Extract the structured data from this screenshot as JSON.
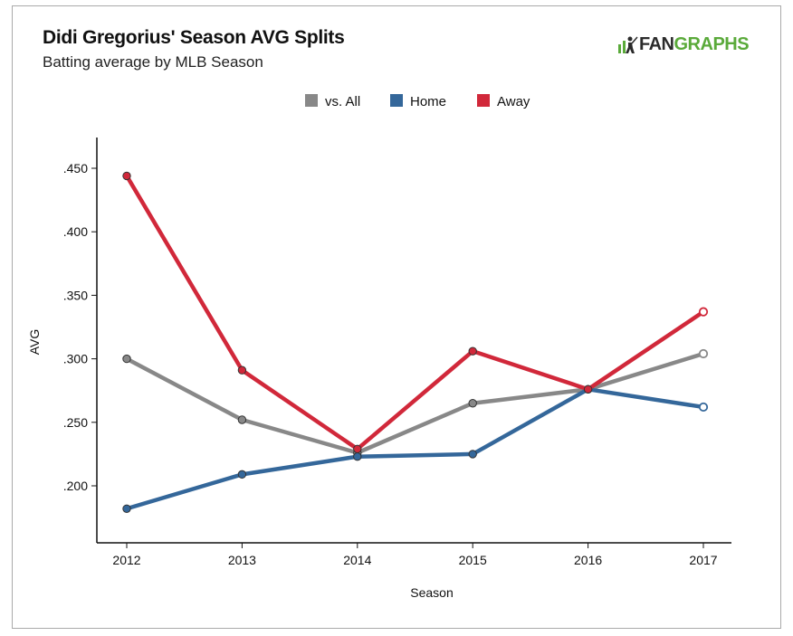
{
  "header": {
    "title": "Didi Gregorius' Season AVG Splits",
    "subtitle": "Batting average by MLB Season",
    "logo_part1": "FAN",
    "logo_part2": "GRAPHS"
  },
  "colors": {
    "vs_all": "#888888",
    "home": "#34679a",
    "away": "#d1283a",
    "axis": "#111111",
    "logo_green": "#5aaa3a"
  },
  "chart_data": {
    "type": "line",
    "title": "Didi Gregorius' Season AVG Splits",
    "subtitle": "Batting average by MLB Season",
    "xlabel": "Season",
    "ylabel": "AVG",
    "x": [
      2012,
      2013,
      2014,
      2015,
      2016,
      2017
    ],
    "x_tick_labels": [
      "2012",
      "2013",
      "2014",
      "2015",
      "2016",
      "2017"
    ],
    "y_ticks": [
      0.2,
      0.25,
      0.3,
      0.35,
      0.4,
      0.45
    ],
    "y_tick_labels": [
      ".200",
      ".250",
      ".300",
      ".350",
      ".400",
      ".450"
    ],
    "ylim": [
      0.168,
      0.475
    ],
    "legend_position": "top-center",
    "grid": false,
    "series": [
      {
        "name": "vs. All",
        "color_key": "vs_all",
        "values": [
          0.3,
          0.252,
          0.226,
          0.265,
          0.276,
          0.304
        ]
      },
      {
        "name": "Home",
        "color_key": "home",
        "values": [
          0.182,
          0.209,
          0.223,
          0.225,
          0.276,
          0.262
        ]
      },
      {
        "name": "Away",
        "color_key": "away",
        "values": [
          0.444,
          0.291,
          0.229,
          0.306,
          0.276,
          0.337
        ]
      }
    ],
    "last_point_open": true
  }
}
